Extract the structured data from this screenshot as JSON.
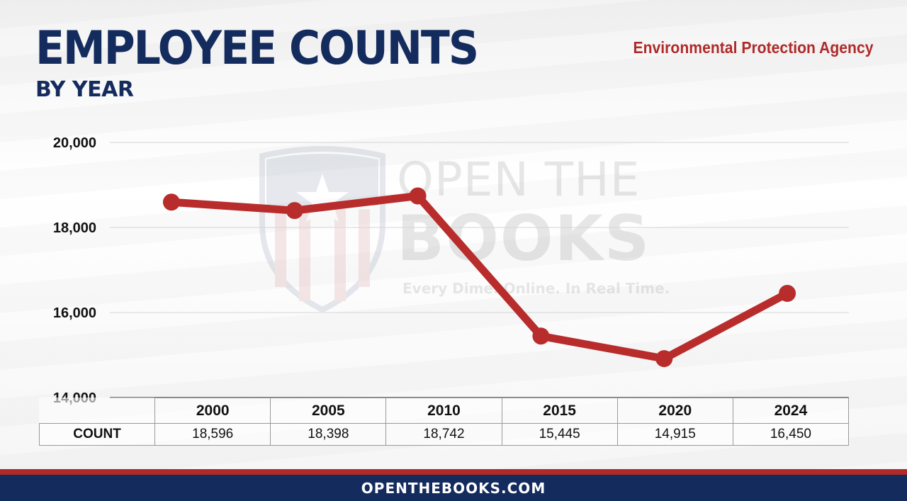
{
  "header": {
    "title": "EMPLOYEE COUNTS",
    "subtitle": "BY YEAR",
    "agency": "Environmental Protection Agency"
  },
  "watermark": {
    "line1": "OPEN THE",
    "line2": "BOOKS",
    "tagline": "Every Dime. Online. In Real Time."
  },
  "footer": {
    "text": "OPENTHEBOOKS.COM"
  },
  "colors": {
    "line": "#b82c2c",
    "navy": "#142b5e",
    "red": "#b02a2a"
  },
  "chart_data": {
    "type": "line",
    "title": "EMPLOYEE COUNTS",
    "subtitle": "BY YEAR",
    "xlabel": "",
    "ylabel": "",
    "categories": [
      "2000",
      "2005",
      "2010",
      "2015",
      "2020",
      "2024"
    ],
    "series": [
      {
        "name": "COUNT",
        "values": [
          18596,
          18398,
          18742,
          15445,
          14915,
          16450
        ]
      }
    ],
    "value_labels": [
      "18,596",
      "18,398",
      "18,742",
      "15,445",
      "14,915",
      "16,450"
    ],
    "ylim": [
      14000,
      20000
    ],
    "yticks": [
      14000,
      16000,
      18000,
      20000
    ],
    "ytick_labels": [
      "14,000",
      "16,000",
      "18,000",
      "20,000"
    ],
    "grid": true,
    "legend": "none"
  }
}
